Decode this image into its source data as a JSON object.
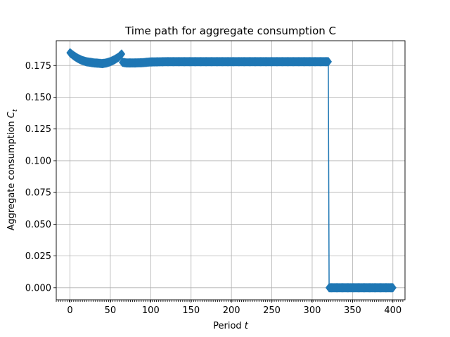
{
  "chart_data": {
    "type": "line",
    "title": "Time path for aggregate consumption C",
    "xlabel_prefix": "Period ",
    "xlabel_var": "t",
    "ylabel_prefix": "Aggregate consumption ",
    "ylabel_var": "C",
    "ylabel_sub": "t",
    "xlim": [
      -17,
      415
    ],
    "ylim": [
      -0.0095,
      0.1945
    ],
    "xticks": [
      0,
      50,
      100,
      150,
      200,
      250,
      300,
      350,
      400
    ],
    "xtick_labels": [
      "0",
      "50",
      "100",
      "150",
      "200",
      "250",
      "300",
      "350",
      "400"
    ],
    "yticks": [
      0.0,
      0.025,
      0.05,
      0.075,
      0.1,
      0.125,
      0.15,
      0.175
    ],
    "ytick_labels": [
      "0.000",
      "0.025",
      "0.050",
      "0.075",
      "0.100",
      "0.125",
      "0.150",
      "0.175"
    ],
    "grid": true,
    "marker": "diamond",
    "color": "#1f77b4",
    "series": [
      {
        "keypoints": [
          [
            0,
            0.185
          ],
          [
            5,
            0.1825
          ],
          [
            10,
            0.1805
          ],
          [
            15,
            0.179
          ],
          [
            20,
            0.178
          ],
          [
            25,
            0.1775
          ],
          [
            30,
            0.177
          ],
          [
            35,
            0.1768
          ],
          [
            40,
            0.1765
          ],
          [
            45,
            0.177
          ],
          [
            50,
            0.178
          ],
          [
            55,
            0.1795
          ],
          [
            60,
            0.1815
          ],
          [
            64,
            0.184
          ],
          [
            65,
            0.1775
          ],
          [
            70,
            0.177
          ],
          [
            80,
            0.177
          ],
          [
            90,
            0.1772
          ],
          [
            100,
            0.1778
          ],
          [
            120,
            0.178
          ],
          [
            320,
            0.178
          ],
          [
            321,
            0.0
          ],
          [
            400,
            0.0
          ]
        ]
      }
    ]
  }
}
